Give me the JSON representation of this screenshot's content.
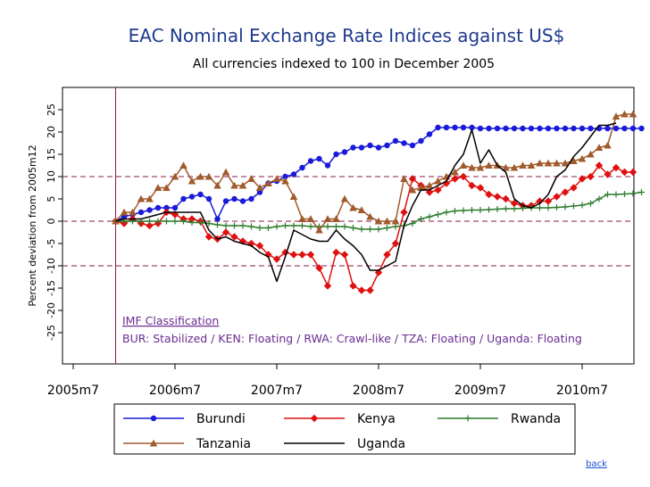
{
  "chart_data": {
    "type": "line",
    "title": "EAC Nominal Exchange Rate Indices against US$",
    "subtitle": "All currencies indexed to 100 in December 2005",
    "ylabel": "Percent deviation from  2005m12",
    "ylim": [
      -32,
      30
    ],
    "y_ticks": [
      25,
      20,
      15,
      10,
      5,
      0,
      -5,
      -10,
      -15,
      -20,
      -25
    ],
    "y_tick_labels": [
      "25",
      "20",
      "15",
      "10",
      "5",
      "0",
      "-5",
      "-10",
      "-15",
      "-20",
      "-25"
    ],
    "x_start_month": "2005m6",
    "x_end_month": "2010m11",
    "x_tick_labels": [
      "2005m7",
      "2006m7",
      "2007m7",
      "2008m7",
      "2009m7",
      "2010m7"
    ],
    "x_tick_months": [
      0,
      12,
      24,
      36,
      48,
      60
    ],
    "reference_month": 5,
    "reference_lines": [
      10,
      0,
      -10
    ],
    "annotation_title": "IMF Classification",
    "annotation_text": "BUR: Stabilized  / KEN: Floating  / RWA: Crawl-like / TZA: Floating  / Uganda:  Floating",
    "series": [
      {
        "name": "Burundi",
        "color": "#1a1adb",
        "marker": "circle",
        "start": 5,
        "values": [
          0,
          1,
          1.5,
          2,
          2.5,
          3,
          3,
          3,
          5,
          5.5,
          6,
          5,
          0.5,
          4.5,
          5,
          4.5,
          5,
          6.5,
          8.5,
          9,
          10,
          10.5,
          12,
          13.5,
          14,
          12.5,
          15,
          15.5,
          16.5,
          16.5,
          17,
          16.5,
          17,
          18,
          17.5,
          17,
          18,
          19.5,
          21,
          21,
          21,
          21,
          21,
          20.8,
          20.8,
          20.8,
          20.8,
          20.8,
          20.8,
          20.8,
          20.8,
          20.8,
          20.8,
          20.8,
          20.8,
          20.8,
          20.8,
          20.8,
          20.8,
          20.8,
          20.8,
          20.8,
          20.8
        ]
      },
      {
        "name": "Kenya",
        "color": "#e01010",
        "marker": "diamond",
        "start": 5,
        "values": [
          0,
          -0.5,
          0.5,
          -0.5,
          -1,
          -0.5,
          2,
          1.5,
          0.5,
          0.5,
          0,
          -3.5,
          -4,
          -2.5,
          -3.5,
          -4.5,
          -5,
          -5.5,
          -7.5,
          -8.5,
          -7,
          -7.5,
          -7.5,
          -7.5,
          -10.5,
          -14.5,
          -7,
          -7.5,
          -14.5,
          -15.5,
          -15.5,
          -11.5,
          -7.5,
          -5,
          2,
          9.5,
          8,
          6.5,
          7,
          8.5,
          9.5,
          10,
          8,
          7.5,
          6,
          5.5,
          5,
          4,
          3.5,
          3.5,
          4.5,
          4.5,
          5.5,
          6.5,
          7.5,
          9.5,
          10,
          12.5,
          10.5,
          12,
          11,
          11
        ]
      },
      {
        "name": "Rwanda",
        "color": "#2e7d2e",
        "marker": "plus",
        "start": 5,
        "values": [
          0,
          0,
          0,
          0,
          0,
          0,
          0,
          0,
          0,
          -0.3,
          -0.3,
          -0.5,
          -0.8,
          -1,
          -1,
          -1,
          -1.2,
          -1.5,
          -1.5,
          -1.2,
          -1,
          -1,
          -1,
          -1.2,
          -1.2,
          -1.2,
          -1.2,
          -1.2,
          -1.5,
          -1.8,
          -1.8,
          -1.8,
          -1.5,
          -1.2,
          -1,
          -0.5,
          0.5,
          1,
          1.5,
          2,
          2.3,
          2.4,
          2.5,
          2.5,
          2.6,
          2.7,
          2.8,
          2.8,
          2.9,
          3,
          3,
          3,
          3.1,
          3.2,
          3.4,
          3.6,
          4,
          5,
          6,
          6,
          6.1,
          6.2,
          6.5
        ]
      },
      {
        "name": "Tanzania",
        "color": "#a05a2c",
        "marker": "triangle",
        "start": 5,
        "values": [
          0,
          2,
          2,
          5,
          5,
          7.5,
          7.5,
          10,
          12.5,
          9,
          10,
          10,
          8,
          11,
          8,
          8,
          9.5,
          7.5,
          8.5,
          9.5,
          9,
          5.5,
          0.5,
          0.5,
          -2,
          0.5,
          0.5,
          5,
          3,
          2.5,
          1,
          0,
          0,
          0,
          9.5,
          7,
          7.5,
          8,
          9,
          10,
          11,
          12.5,
          12,
          12,
          12.5,
          12.5,
          12,
          12,
          12.5,
          12.5,
          13,
          13,
          13,
          13,
          13.5,
          14,
          15,
          16.5,
          17,
          23.5,
          24,
          24
        ]
      },
      {
        "name": "Uganda",
        "color": "#000000",
        "marker": "none",
        "start": 5,
        "values": [
          0,
          0.5,
          0.5,
          0.5,
          1,
          1.5,
          2,
          2,
          2,
          2,
          2,
          -2,
          -4,
          -3.5,
          -4.5,
          -5,
          -5.5,
          -7,
          -8,
          -13.5,
          -8,
          -2,
          -3,
          -4,
          -4.5,
          -4.5,
          -2,
          -4,
          -5.5,
          -7.5,
          -11,
          -11,
          -10,
          -9,
          -1,
          3.5,
          7,
          7,
          8,
          9,
          12.5,
          15,
          20.5,
          13,
          16,
          12.5,
          11,
          5,
          3.5,
          3,
          4,
          6,
          10,
          11.5,
          14.5,
          16.5,
          19,
          21.5,
          21.5,
          22
        ]
      }
    ]
  },
  "footer": {
    "back_label": "back"
  }
}
